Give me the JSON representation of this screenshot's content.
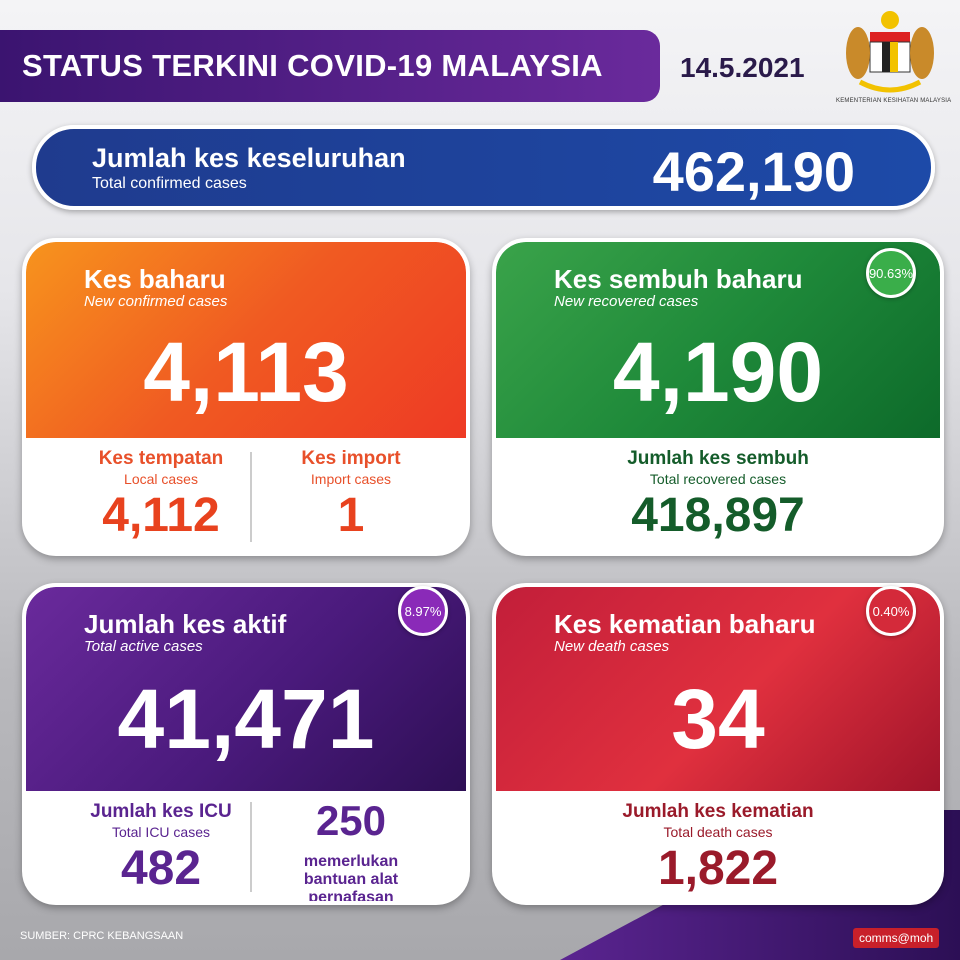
{
  "header": {
    "title": "STATUS TERKINI COVID-19 MALAYSIA",
    "date": "14.5.2021",
    "logo_text": "KEMENTERIAN KESIHATAN MALAYSIA"
  },
  "total": {
    "label": "Jumlah kes keseluruhan",
    "sublabel": "Total confirmed cases",
    "value": "462,190",
    "color": "#1f3b8e"
  },
  "new_cases": {
    "label": "Kes baharu",
    "sublabel": "New confirmed cases",
    "value": "4,113",
    "color": "#f05a22",
    "local": {
      "label": "Kes tempatan",
      "sublabel": "Local cases",
      "value": "4,112"
    },
    "import": {
      "label": "Kes import",
      "sublabel": "Import cases",
      "value": "1"
    }
  },
  "recovered": {
    "label": "Kes sembuh baharu",
    "sublabel": "New recovered cases",
    "value": "4,190",
    "badge": "90.63%",
    "color": "#1f8a3a",
    "total": {
      "label": "Jumlah kes sembuh",
      "sublabel": "Total recovered cases",
      "value": "418,897"
    }
  },
  "active": {
    "label": "Jumlah kes aktif",
    "sublabel": "Total active cases",
    "value": "41,471",
    "badge": "8.97%",
    "color": "#5a1f8c",
    "icu": {
      "label": "Jumlah kes ICU",
      "sublabel": "Total ICU cases",
      "value": "482"
    },
    "ventilator": {
      "value": "250",
      "label": "memerlukan bantuan alat pernafasan"
    }
  },
  "deaths": {
    "label": "Kes kematian baharu",
    "sublabel": "New death cases",
    "value": "34",
    "badge": "0.40%",
    "color": "#d42a3a",
    "total": {
      "label": "Jumlah kes kematian",
      "sublabel": "Total death cases",
      "value": "1,822"
    }
  },
  "footer": {
    "source": "SUMBER: CPRC KEBANGSAAN",
    "brand": "comms@moh"
  }
}
